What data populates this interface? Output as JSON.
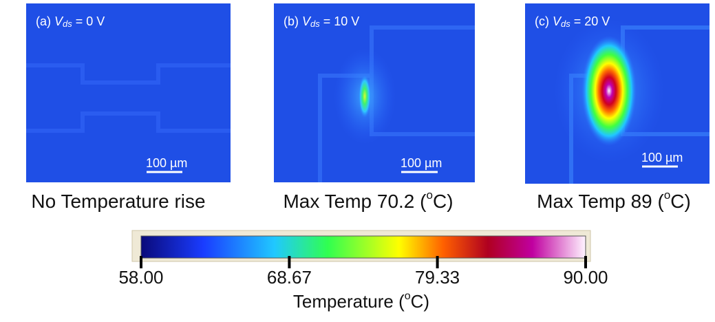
{
  "panels": [
    {
      "prefix": "(a) ",
      "symbol": "V",
      "subscript": "ds",
      "suffix": " = 0 V",
      "scale_bar": "100 µm",
      "caption": {
        "text": "No Temperature rise"
      }
    },
    {
      "prefix": "(b) ",
      "symbol": "V",
      "subscript": "ds",
      "suffix": " = 10 V",
      "scale_bar": "100 µm",
      "caption": {
        "text": "Max Temp 70.2 (",
        "sup": "o",
        "end": "C)"
      }
    },
    {
      "prefix": "(c) ",
      "symbol": "V",
      "subscript": "ds",
      "suffix": " = 20 V",
      "scale_bar": "100 µm",
      "caption": {
        "text": "Max Temp 89 (",
        "sup": "o",
        "end": "C)"
      }
    }
  ],
  "colorbar": {
    "ticks": [
      {
        "value": 58,
        "label": "58.00"
      },
      {
        "value": 68.67,
        "label": "68.67"
      },
      {
        "value": 79.33,
        "label": "79.33"
      },
      {
        "value": 90,
        "label": "90.00"
      }
    ],
    "title": {
      "text": "Temperature (",
      "sup": "o",
      "end": "C)"
    }
  }
}
